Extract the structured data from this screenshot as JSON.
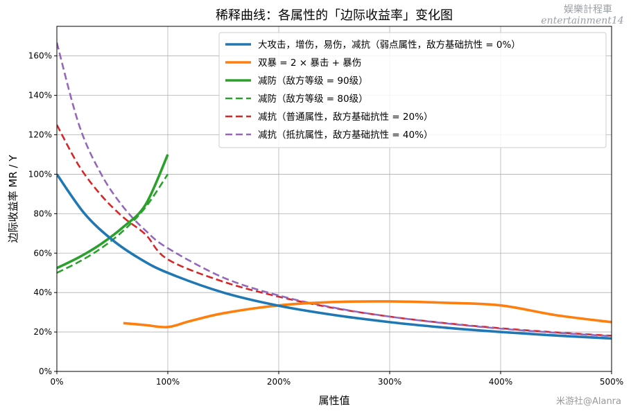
{
  "chart_data": {
    "type": "line",
    "title": "稀释曲线：各属性的「边际收益率」变化图",
    "xlabel": "属性值",
    "ylabel": "边际收益率 MR / Y",
    "xlim": [
      0,
      500
    ],
    "ylim": [
      0,
      175
    ],
    "x_ticks": [
      0,
      100,
      200,
      300,
      400,
      500
    ],
    "x_tick_labels": [
      "0%",
      "100%",
      "200%",
      "300%",
      "400%",
      "500%"
    ],
    "y_ticks": [
      0,
      20,
      40,
      60,
      80,
      100,
      120,
      140,
      160
    ],
    "y_tick_labels": [
      "0%",
      "20%",
      "40%",
      "60%",
      "80%",
      "100%",
      "120%",
      "140%",
      "160%"
    ],
    "grid": true,
    "legend_position": "top-right",
    "series": [
      {
        "name": "大攻击，增伤，易伤，减抗（弱点属性，敌方基础抗性 = 0%）",
        "color": "#1f77b4",
        "style": "solid",
        "x": [
          0,
          25,
          50,
          75,
          100,
          150,
          200,
          250,
          300,
          350,
          400,
          450,
          500
        ],
        "y": [
          100,
          80,
          66.7,
          57.1,
          50,
          40,
          33.3,
          28.6,
          25,
          22.2,
          20,
          18.2,
          16.7
        ]
      },
      {
        "name": "双暴 = 2 × 暴击 + 暴伤",
        "color": "#ff7f0e",
        "style": "solid",
        "x": [
          60,
          80,
          100,
          120,
          150,
          200,
          250,
          300,
          350,
          400,
          450,
          500
        ],
        "y": [
          24.5,
          23.5,
          22.5,
          25.5,
          29.5,
          33.5,
          35.2,
          35.5,
          34.8,
          33.5,
          28.5,
          25
        ]
      },
      {
        "name": "减防（敌方等级 = 90级）",
        "color": "#2ca02c",
        "style": "solid",
        "x": [
          0,
          20,
          40,
          60,
          80,
          100
        ],
        "y": [
          52.4,
          57.9,
          64.7,
          73.3,
          84.6,
          110
        ]
      },
      {
        "name": "减防（敌方等级 = 80级）",
        "color": "#2ca02c",
        "style": "dashed",
        "x": [
          0,
          20,
          40,
          60,
          80,
          100
        ],
        "y": [
          50,
          55.6,
          62.5,
          71.4,
          83.3,
          100
        ]
      },
      {
        "name": "减抗（普通属性，敌方基础抗性 = 20%）",
        "color": "#d62728",
        "style": "dashed",
        "x": [
          0,
          20,
          40,
          60,
          80,
          100,
          150,
          200,
          250,
          300,
          350,
          400,
          450,
          500
        ],
        "y": [
          125,
          104.2,
          89.3,
          78.1,
          69.4,
          56.8,
          45.5,
          37.9,
          32.1,
          27.8,
          24.5,
          21.9,
          19.8,
          18.1
        ]
      },
      {
        "name": "减抗（抵抗属性，敌方基础抗性 = 40%）",
        "color": "#9467bd",
        "style": "dashed",
        "x": [
          0,
          20,
          40,
          60,
          80,
          100,
          150,
          200,
          250,
          300,
          350,
          400,
          450,
          500
        ],
        "y": [
          166.7,
          125,
          100,
          83.3,
          71.4,
          62.5,
          47.6,
          38.5,
          32.3,
          27.8,
          24.4,
          21.7,
          19.6,
          17.9
        ]
      }
    ]
  },
  "watermark": {
    "line1": "娱樂計程車",
    "line2": "entertainment14"
  },
  "credit": "米游社@Alanra"
}
